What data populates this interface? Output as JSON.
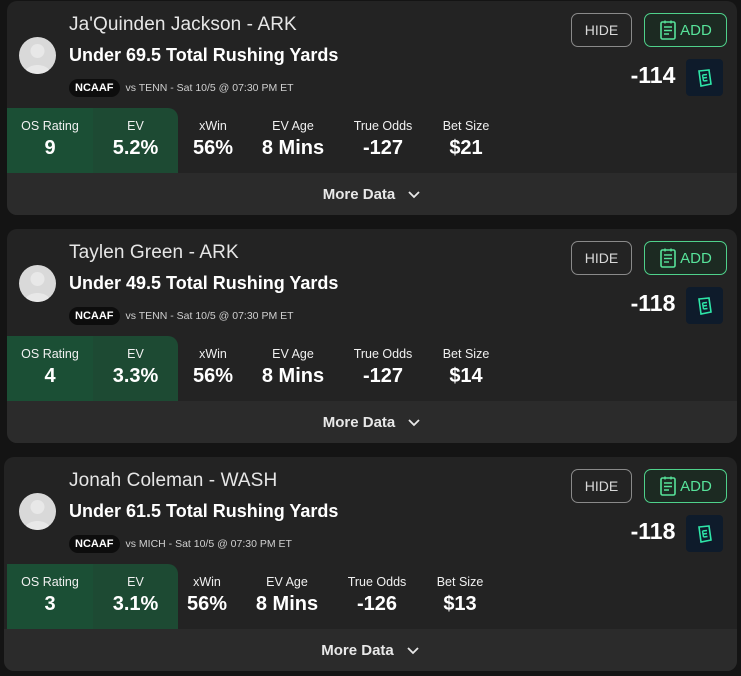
{
  "cards": [
    {
      "player": "Ja'Quinden Jackson - ARK",
      "bet": "Under 69.5 Total Rushing Yards",
      "league": "NCAAF",
      "game": "vs TENN - Sat 10/5 @ 07:30 PM ET",
      "hide_label": "HIDE",
      "add_label": "ADD",
      "odds": "-114",
      "stats": {
        "os_rating_label": "OS Rating",
        "os_rating": "9",
        "ev_label": "EV",
        "ev": "5.2%",
        "xwin_label": "xWin",
        "xwin": "56%",
        "ev_age_label": "EV Age",
        "ev_age": "8 Mins",
        "true_odds_label": "True Odds",
        "true_odds": "-127",
        "bet_size_label": "Bet Size",
        "bet_size": "$21"
      },
      "more_label": "More Data"
    },
    {
      "player": "Taylen Green - ARK",
      "bet": "Under 49.5 Total Rushing Yards",
      "league": "NCAAF",
      "game": "vs TENN - Sat 10/5 @ 07:30 PM ET",
      "hide_label": "HIDE",
      "add_label": "ADD",
      "odds": "-118",
      "stats": {
        "os_rating_label": "OS Rating",
        "os_rating": "4",
        "ev_label": "EV",
        "ev": "3.3%",
        "xwin_label": "xWin",
        "xwin": "56%",
        "ev_age_label": "EV Age",
        "ev_age": "8 Mins",
        "true_odds_label": "True Odds",
        "true_odds": "-127",
        "bet_size_label": "Bet Size",
        "bet_size": "$14"
      },
      "more_label": "More Data"
    },
    {
      "player": "Jonah Coleman - WASH",
      "bet": "Under 61.5 Total Rushing Yards",
      "league": "NCAAF",
      "game": "vs MICH - Sat 10/5 @ 07:30 PM ET",
      "hide_label": "HIDE",
      "add_label": "ADD",
      "odds": "-118",
      "stats": {
        "os_rating_label": "OS Rating",
        "os_rating": "3",
        "ev_label": "EV",
        "ev": "3.1%",
        "xwin_label": "xWin",
        "xwin": "56%",
        "ev_age_label": "EV Age",
        "ev_age": "8 Mins",
        "true_odds_label": "True Odds",
        "true_odds": "-126",
        "bet_size_label": "Bet Size",
        "bet_size": "$13"
      },
      "more_label": "More Data"
    }
  ],
  "colors": {
    "background": "#141414",
    "card": "#232323",
    "rating_bg": "#1b4f35",
    "add_accent": "#57e39a",
    "book_logo_bg": "#0e1b2b",
    "book_logo_fg": "#2ee6a8"
  },
  "icons": {
    "add": "notepad-icon",
    "more": "chevron-down-icon",
    "book": "sportsbook-logo-icon",
    "avatar": "user-silhouette-icon"
  }
}
